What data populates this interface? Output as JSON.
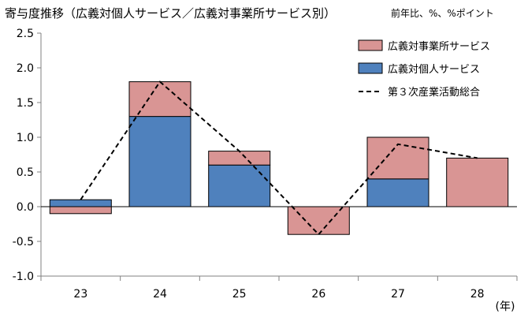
{
  "chart_data": {
    "type": "bar",
    "stacked": true,
    "title": "寄与度推移（広義対個人サービス／広義対事業所サービス別）",
    "unit_note": "前年比、%、%ポイント",
    "xlabel": "(年)",
    "ylabel": "",
    "categories": [
      "23",
      "24",
      "25",
      "26",
      "27",
      "28"
    ],
    "ylim": [
      -1.0,
      2.5
    ],
    "yticks": [
      "2.5",
      "2.0",
      "1.5",
      "1.0",
      "0.5",
      "0.0",
      "-0.5",
      "-1.0"
    ],
    "ytick_values": [
      2.5,
      2.0,
      1.5,
      1.0,
      0.5,
      0.0,
      -0.5,
      -1.0
    ],
    "grid": false,
    "legend_position": "top-right",
    "series": [
      {
        "name": "広義対個人サービス",
        "kind": "bar",
        "color": "#4f81bd",
        "values": [
          0.1,
          1.3,
          0.6,
          0.0,
          0.4,
          0.0
        ]
      },
      {
        "name": "広義対事業所サービス",
        "kind": "bar",
        "color": "#d99594",
        "values": [
          -0.1,
          0.5,
          0.2,
          -0.4,
          0.6,
          0.7
        ]
      },
      {
        "name": "第３次産業活動総合",
        "kind": "line",
        "color": "#000000",
        "dash": "dashed",
        "values": [
          0.1,
          1.8,
          0.8,
          -0.4,
          0.9,
          0.7
        ]
      }
    ]
  }
}
